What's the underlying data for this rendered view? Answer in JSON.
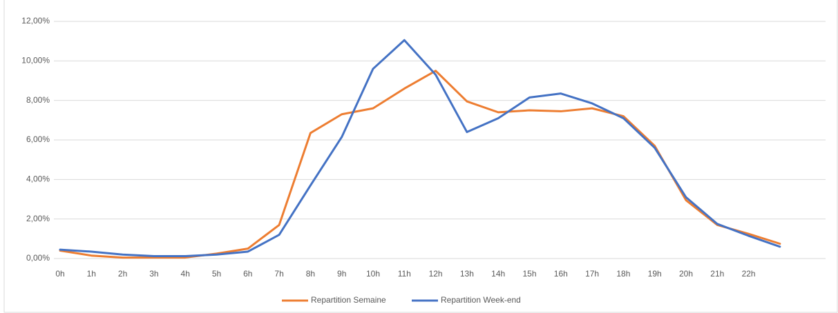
{
  "chart_data": {
    "type": "line",
    "categories": [
      "0h",
      "1h",
      "2h",
      "3h",
      "4h",
      "5h",
      "6h",
      "7h",
      "8h",
      "9h",
      "10h",
      "11h",
      "12h",
      "13h",
      "14h",
      "15h",
      "16h",
      "17h",
      "18h",
      "19h",
      "20h",
      "21h",
      "22h",
      null
    ],
    "series": [
      {
        "name": "Repartition Semaine",
        "color": "#ED7D31",
        "values": [
          0.4,
          0.15,
          0.05,
          0.05,
          0.05,
          0.25,
          0.5,
          1.7,
          6.35,
          7.3,
          7.6,
          8.6,
          9.5,
          7.95,
          7.4,
          7.5,
          7.45,
          7.6,
          7.2,
          5.7,
          2.95,
          1.7,
          1.25,
          0.75
        ]
      },
      {
        "name": "Repartition Week-end",
        "color": "#4472C4",
        "values": [
          0.45,
          0.35,
          0.2,
          0.12,
          0.12,
          0.2,
          0.35,
          1.2,
          3.7,
          6.15,
          9.6,
          11.05,
          9.3,
          6.4,
          7.1,
          8.15,
          8.35,
          7.85,
          7.1,
          5.6,
          3.1,
          1.75,
          1.15,
          0.6
        ]
      }
    ],
    "ylim": [
      0,
      12
    ],
    "yticks": [
      {
        "value": 0,
        "label": "0,00%"
      },
      {
        "value": 2,
        "label": "2,00%"
      },
      {
        "value": 4,
        "label": "4,00%"
      },
      {
        "value": 6,
        "label": "6,00%"
      },
      {
        "value": 8,
        "label": "8,00%"
      },
      {
        "value": 10,
        "label": "10,00%"
      },
      {
        "value": 12,
        "label": "12,00%"
      }
    ],
    "grid": true,
    "legend": "bottom"
  }
}
